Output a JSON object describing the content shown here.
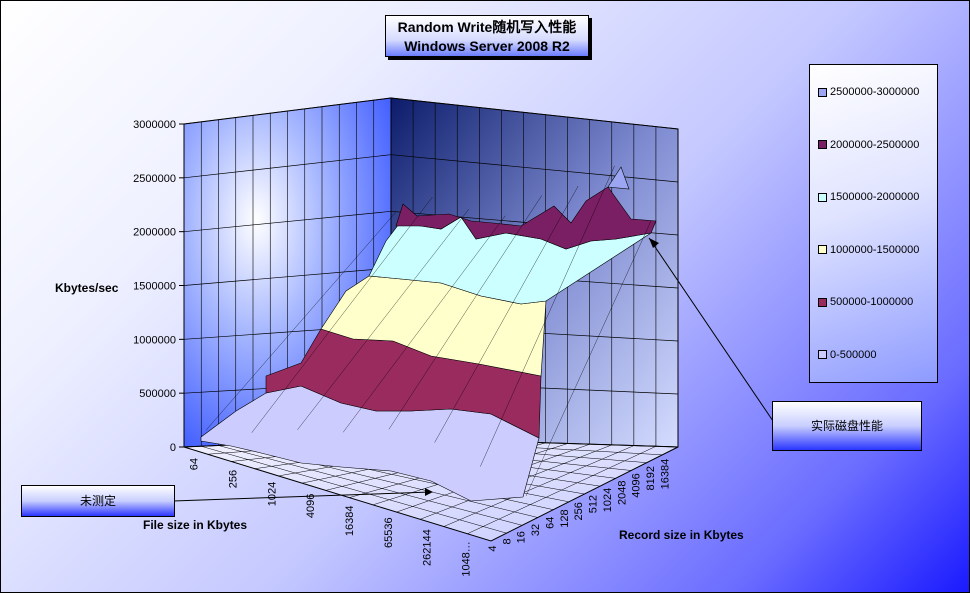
{
  "chart_data": {
    "type": "3d-surface",
    "title": "Random Write随机写入性能",
    "subtitle": "Windows Server 2008 R2",
    "zlabel": "Kbytes/sec",
    "xlabel": "File size in Kbytes",
    "ylabel": "Record size in Kbytes",
    "zlim": [
      0,
      3000000
    ],
    "z_ticks": [
      "3000000",
      "2500000",
      "2000000",
      "1500000",
      "1000000",
      "500000",
      "0"
    ],
    "file_size_ticks": [
      "64",
      "256",
      "1024",
      "4096",
      "16384",
      "65536",
      "262144",
      "1048…"
    ],
    "record_size_ticks": [
      "4",
      "8",
      "16",
      "32",
      "64",
      "128",
      "256",
      "512",
      "1024",
      "2048",
      "4096",
      "8192",
      "16384"
    ],
    "legend_position": "right",
    "legend": [
      {
        "label": "2500000-3000000",
        "color": "#9da6f2"
      },
      {
        "label": "2000000-2500000",
        "color": "#7a1f63"
      },
      {
        "label": "1500000-2000000",
        "color": "#ccffff"
      },
      {
        "label": "1000000-1500000",
        "color": "#ffffcc"
      },
      {
        "label": "500000-1000000",
        "color": "#9a2b5f"
      },
      {
        "label": "0-500000",
        "color": "#ccccff"
      }
    ],
    "annotations": [
      {
        "label": "未测定"
      },
      {
        "label": "实际磁盘性能"
      }
    ],
    "surface_profile_back_edge": [
      2100000,
      2250000,
      2150000,
      2100000,
      2300000,
      2400000,
      2600000,
      2100000
    ],
    "surface_profile_front_edge": [
      100000,
      150000,
      250000,
      300000,
      400000,
      350000,
      200000,
      0
    ]
  }
}
